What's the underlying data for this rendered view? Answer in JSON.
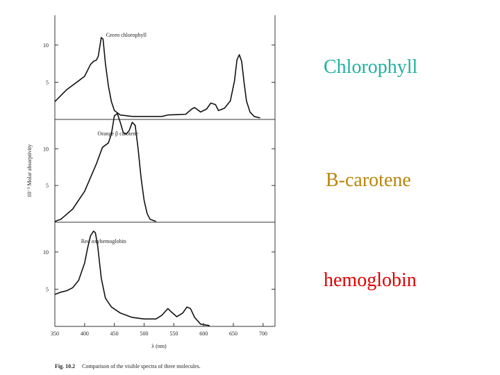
{
  "colors": {
    "chlorophyll_label": "#20b2a0",
    "carotene_label": "#b8860b",
    "hemoglobin_label": "#e00000",
    "curve": "#111111"
  },
  "side_labels": {
    "chlorophyll": "Chlorophyll",
    "carotene": "B-carotene",
    "hemoglobin": "hemoglobin"
  },
  "caption": {
    "prefix": "Fig. 10.2",
    "text": "Comparison of the visible spectra of three molecules."
  },
  "chart_data": {
    "type": "line",
    "xlabel": "λ (nm)",
    "ylabel": "10⁻³ Molar absorptivity",
    "xlim": [
      350,
      720
    ],
    "x_ticks": [
      350,
      400,
      450,
      500,
      550,
      600,
      650,
      700
    ],
    "panels": [
      {
        "title": "Green chlorophyll",
        "ylim": [
          0,
          14
        ],
        "y_ticks": [
          5,
          10
        ],
        "points": [
          [
            350,
            2.4
          ],
          [
            370,
            4.0
          ],
          [
            390,
            5.2
          ],
          [
            400,
            5.8
          ],
          [
            410,
            7.4
          ],
          [
            415,
            7.8
          ],
          [
            420,
            8.0
          ],
          [
            423,
            8.5
          ],
          [
            426,
            10.0
          ],
          [
            428,
            11.0
          ],
          [
            431,
            10.8
          ],
          [
            435,
            7.5
          ],
          [
            440,
            4.5
          ],
          [
            445,
            2.4
          ],
          [
            450,
            1.2
          ],
          [
            460,
            0.6
          ],
          [
            480,
            0.4
          ],
          [
            500,
            0.4
          ],
          [
            530,
            0.4
          ],
          [
            540,
            0.6
          ],
          [
            570,
            0.7
          ],
          [
            580,
            1.4
          ],
          [
            585,
            1.6
          ],
          [
            595,
            1.0
          ],
          [
            605,
            1.4
          ],
          [
            612,
            2.2
          ],
          [
            620,
            2.0
          ],
          [
            625,
            1.2
          ],
          [
            635,
            1.5
          ],
          [
            645,
            2.5
          ],
          [
            652,
            5.2
          ],
          [
            656,
            8.0
          ],
          [
            660,
            8.7
          ],
          [
            664,
            7.8
          ],
          [
            668,
            5.0
          ],
          [
            672,
            2.5
          ],
          [
            678,
            1.0
          ],
          [
            685,
            0.4
          ],
          [
            695,
            0.2
          ]
        ]
      },
      {
        "title": "Orange β carotene",
        "ylim": [
          0,
          14
        ],
        "y_ticks": [
          5,
          10
        ],
        "points": [
          [
            350,
            0.1
          ],
          [
            360,
            0.4
          ],
          [
            380,
            1.8
          ],
          [
            400,
            4.2
          ],
          [
            420,
            8.0
          ],
          [
            430,
            10.2
          ],
          [
            440,
            10.8
          ],
          [
            445,
            12.0
          ],
          [
            450,
            14.5
          ],
          [
            455,
            14.8
          ],
          [
            460,
            13.6
          ],
          [
            465,
            12.2
          ],
          [
            470,
            12.0
          ],
          [
            475,
            12.5
          ],
          [
            480,
            13.6
          ],
          [
            485,
            13.2
          ],
          [
            490,
            10.0
          ],
          [
            495,
            6.0
          ],
          [
            500,
            3.0
          ],
          [
            505,
            1.2
          ],
          [
            510,
            0.4
          ],
          [
            520,
            0.1
          ]
        ]
      },
      {
        "title": "Red oxyhemoglobin",
        "ylim": [
          0,
          14
        ],
        "y_ticks": [
          5,
          10
        ],
        "points": [
          [
            350,
            4.3
          ],
          [
            360,
            4.6
          ],
          [
            370,
            4.8
          ],
          [
            380,
            5.2
          ],
          [
            390,
            6.2
          ],
          [
            400,
            8.5
          ],
          [
            405,
            10.5
          ],
          [
            410,
            12.2
          ],
          [
            415,
            12.8
          ],
          [
            418,
            12.6
          ],
          [
            422,
            10.8
          ],
          [
            428,
            6.5
          ],
          [
            435,
            3.8
          ],
          [
            445,
            2.6
          ],
          [
            460,
            1.8
          ],
          [
            480,
            1.2
          ],
          [
            500,
            1.0
          ],
          [
            520,
            1.0
          ],
          [
            530,
            1.5
          ],
          [
            540,
            2.4
          ],
          [
            545,
            2.0
          ],
          [
            555,
            1.3
          ],
          [
            565,
            1.8
          ],
          [
            572,
            2.6
          ],
          [
            578,
            2.4
          ],
          [
            585,
            1.2
          ],
          [
            595,
            0.3
          ],
          [
            610,
            0.1
          ]
        ]
      }
    ]
  }
}
